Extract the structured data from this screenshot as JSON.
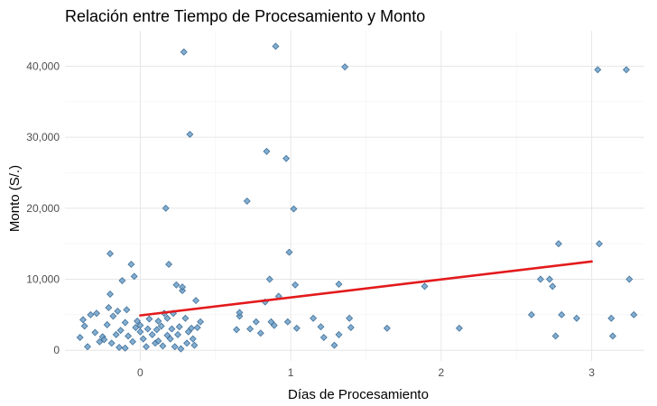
{
  "chart_data": {
    "type": "scatter",
    "title": "Relación entre Tiempo de Procesamiento y Monto",
    "xlabel": "Días de Procesamiento",
    "ylabel": "Monto (S/.)",
    "xlim": [
      -0.5,
      3.35
    ],
    "ylim": [
      -1500,
      45000
    ],
    "x_ticks": [
      0,
      1,
      2,
      3
    ],
    "x_tick_labels": [
      "0",
      "1",
      "2",
      "3"
    ],
    "y_ticks": [
      0,
      10000,
      20000,
      30000,
      40000
    ],
    "y_tick_labels": [
      "0",
      "10,000",
      "20,000",
      "30,000",
      "40,000"
    ],
    "grid": true,
    "point_color": "#6fa0c8",
    "point_edge_color": "#3f6f99",
    "trend_color": "#e31a1c",
    "trend_line": {
      "x": [
        0,
        3
      ],
      "y": [
        4900,
        12500
      ]
    },
    "points": [
      {
        "x": -0.4,
        "y": 1800
      },
      {
        "x": -0.38,
        "y": 4300
      },
      {
        "x": -0.37,
        "y": 3400
      },
      {
        "x": -0.35,
        "y": 500
      },
      {
        "x": -0.33,
        "y": 5000
      },
      {
        "x": -0.3,
        "y": 2500
      },
      {
        "x": -0.29,
        "y": 5200
      },
      {
        "x": -0.27,
        "y": 1200
      },
      {
        "x": -0.25,
        "y": 1900
      },
      {
        "x": -0.24,
        "y": 1500
      },
      {
        "x": -0.22,
        "y": 3600
      },
      {
        "x": -0.21,
        "y": 6000
      },
      {
        "x": -0.2,
        "y": 7900
      },
      {
        "x": -0.2,
        "y": 13600
      },
      {
        "x": -0.19,
        "y": 1000
      },
      {
        "x": -0.18,
        "y": 4800
      },
      {
        "x": -0.16,
        "y": 2200
      },
      {
        "x": -0.15,
        "y": 5500
      },
      {
        "x": -0.14,
        "y": 400
      },
      {
        "x": -0.13,
        "y": 2800
      },
      {
        "x": -0.12,
        "y": 9800
      },
      {
        "x": -0.1,
        "y": 3900
      },
      {
        "x": -0.1,
        "y": 300
      },
      {
        "x": -0.09,
        "y": 5700
      },
      {
        "x": -0.08,
        "y": 2000
      },
      {
        "x": -0.06,
        "y": 12100
      },
      {
        "x": -0.05,
        "y": 1200
      },
      {
        "x": -0.04,
        "y": 10400
      },
      {
        "x": -0.03,
        "y": 3200
      },
      {
        "x": -0.02,
        "y": 4100
      },
      {
        "x": 0.0,
        "y": 2600
      },
      {
        "x": 0.0,
        "y": 3500
      },
      {
        "x": 0.02,
        "y": 1600
      },
      {
        "x": 0.04,
        "y": 500
      },
      {
        "x": 0.05,
        "y": 3000
      },
      {
        "x": 0.06,
        "y": 4400
      },
      {
        "x": 0.08,
        "y": 2200
      },
      {
        "x": 0.1,
        "y": 1000
      },
      {
        "x": 0.11,
        "y": 2900
      },
      {
        "x": 0.12,
        "y": 4100
      },
      {
        "x": 0.12,
        "y": 1300
      },
      {
        "x": 0.14,
        "y": 3400
      },
      {
        "x": 0.15,
        "y": 600
      },
      {
        "x": 0.16,
        "y": 5200
      },
      {
        "x": 0.17,
        "y": 20000
      },
      {
        "x": 0.18,
        "y": 2100
      },
      {
        "x": 0.18,
        "y": 4500
      },
      {
        "x": 0.19,
        "y": 12100
      },
      {
        "x": 0.2,
        "y": 1600
      },
      {
        "x": 0.21,
        "y": 3000
      },
      {
        "x": 0.22,
        "y": 5200
      },
      {
        "x": 0.23,
        "y": 500
      },
      {
        "x": 0.24,
        "y": 9200
      },
      {
        "x": 0.25,
        "y": 2200
      },
      {
        "x": 0.26,
        "y": 3300
      },
      {
        "x": 0.27,
        "y": 200
      },
      {
        "x": 0.28,
        "y": 8400
      },
      {
        "x": 0.28,
        "y": 8900
      },
      {
        "x": 0.29,
        "y": 42000
      },
      {
        "x": 0.3,
        "y": 4500
      },
      {
        "x": 0.31,
        "y": 1000
      },
      {
        "x": 0.32,
        "y": 2600
      },
      {
        "x": 0.33,
        "y": 30400
      },
      {
        "x": 0.34,
        "y": 3100
      },
      {
        "x": 0.35,
        "y": 1600
      },
      {
        "x": 0.36,
        "y": 700
      },
      {
        "x": 0.37,
        "y": 7000
      },
      {
        "x": 0.38,
        "y": 3200
      },
      {
        "x": 0.4,
        "y": 4000
      },
      {
        "x": 0.64,
        "y": 2900
      },
      {
        "x": 0.66,
        "y": 4800
      },
      {
        "x": 0.66,
        "y": 5300
      },
      {
        "x": 0.71,
        "y": 21000
      },
      {
        "x": 0.73,
        "y": 3000
      },
      {
        "x": 0.77,
        "y": 4000
      },
      {
        "x": 0.8,
        "y": 2400
      },
      {
        "x": 0.83,
        "y": 6800
      },
      {
        "x": 0.84,
        "y": 28000
      },
      {
        "x": 0.86,
        "y": 10000
      },
      {
        "x": 0.87,
        "y": 4000
      },
      {
        "x": 0.89,
        "y": 3500
      },
      {
        "x": 0.9,
        "y": 42800
      },
      {
        "x": 0.92,
        "y": 7600
      },
      {
        "x": 0.97,
        "y": 27000
      },
      {
        "x": 0.98,
        "y": 4000
      },
      {
        "x": 0.99,
        "y": 13800
      },
      {
        "x": 1.02,
        "y": 19900
      },
      {
        "x": 1.03,
        "y": 9200
      },
      {
        "x": 1.04,
        "y": 3100
      },
      {
        "x": 1.15,
        "y": 4500
      },
      {
        "x": 1.2,
        "y": 3300
      },
      {
        "x": 1.22,
        "y": 1800
      },
      {
        "x": 1.29,
        "y": 700
      },
      {
        "x": 1.32,
        "y": 9300
      },
      {
        "x": 1.32,
        "y": 2200
      },
      {
        "x": 1.36,
        "y": 39900
      },
      {
        "x": 1.39,
        "y": 4500
      },
      {
        "x": 1.4,
        "y": 3200
      },
      {
        "x": 1.64,
        "y": 3100
      },
      {
        "x": 1.89,
        "y": 9000
      },
      {
        "x": 2.12,
        "y": 3100
      },
      {
        "x": 2.6,
        "y": 5000
      },
      {
        "x": 2.66,
        "y": 10000
      },
      {
        "x": 2.72,
        "y": 10000
      },
      {
        "x": 2.74,
        "y": 9000
      },
      {
        "x": 2.76,
        "y": 2000
      },
      {
        "x": 2.78,
        "y": 15000
      },
      {
        "x": 2.8,
        "y": 5000
      },
      {
        "x": 2.9,
        "y": 4500
      },
      {
        "x": 3.04,
        "y": 39500
      },
      {
        "x": 3.05,
        "y": 15000
      },
      {
        "x": 3.13,
        "y": 4500
      },
      {
        "x": 3.14,
        "y": 2000
      },
      {
        "x": 3.23,
        "y": 39500
      },
      {
        "x": 3.25,
        "y": 10000
      },
      {
        "x": 3.28,
        "y": 5000
      }
    ]
  }
}
